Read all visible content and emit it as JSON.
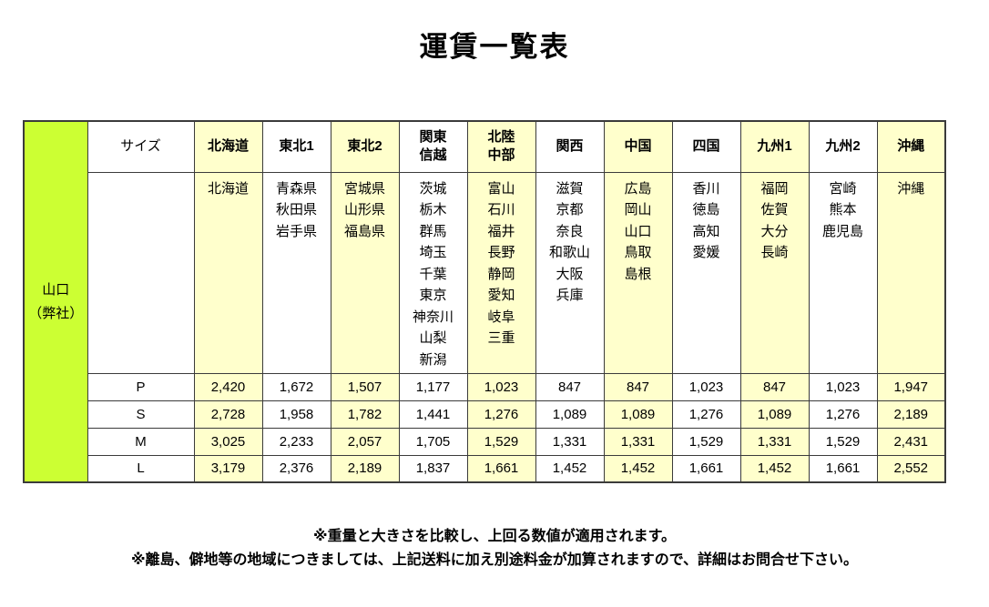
{
  "title": "運賃一覧表",
  "origin": {
    "line1": "山口",
    "line2": "（弊社）"
  },
  "table": {
    "size_header": "サイズ",
    "columns": [
      {
        "id": "hokkaido",
        "label_lines": [
          "北海道"
        ],
        "highlight": true,
        "prefectures": [
          "北海道"
        ]
      },
      {
        "id": "tohoku1",
        "label_lines": [
          "東北1"
        ],
        "highlight": false,
        "prefectures": [
          "青森県",
          "秋田県",
          "岩手県"
        ]
      },
      {
        "id": "tohoku2",
        "label_lines": [
          "東北2"
        ],
        "highlight": true,
        "prefectures": [
          "宮城県",
          "山形県",
          "福島県"
        ]
      },
      {
        "id": "kanto-shinetsu",
        "label_lines": [
          "関東",
          "信越"
        ],
        "highlight": false,
        "prefectures": [
          "茨城",
          "栃木",
          "群馬",
          "埼玉",
          "千葉",
          "東京",
          "神奈川",
          "山梨",
          "新潟"
        ]
      },
      {
        "id": "hokuriku-chubu",
        "label_lines": [
          "北陸",
          "中部"
        ],
        "highlight": true,
        "prefectures": [
          "富山",
          "石川",
          "福井",
          "長野",
          "静岡",
          "愛知",
          "岐阜",
          "三重"
        ]
      },
      {
        "id": "kansai",
        "label_lines": [
          "関西"
        ],
        "highlight": false,
        "prefectures": [
          "滋賀",
          "京都",
          "奈良",
          "和歌山",
          "大阪",
          "兵庫"
        ]
      },
      {
        "id": "chugoku",
        "label_lines": [
          "中国"
        ],
        "highlight": true,
        "prefectures": [
          "広島",
          "岡山",
          "山口",
          "鳥取",
          "島根"
        ]
      },
      {
        "id": "shikoku",
        "label_lines": [
          "四国"
        ],
        "highlight": false,
        "prefectures": [
          "香川",
          "徳島",
          "高知",
          "愛媛"
        ]
      },
      {
        "id": "kyushu1",
        "label_lines": [
          "九州1"
        ],
        "highlight": true,
        "prefectures": [
          "福岡",
          "佐賀",
          "大分",
          "長崎"
        ]
      },
      {
        "id": "kyushu2",
        "label_lines": [
          "九州2"
        ],
        "highlight": false,
        "prefectures": [
          "宮崎",
          "熊本",
          "鹿児島"
        ]
      },
      {
        "id": "okinawa",
        "label_lines": [
          "沖縄"
        ],
        "highlight": true,
        "prefectures": [
          "沖縄"
        ]
      }
    ],
    "rows": [
      {
        "size": "P",
        "values": [
          "2,420",
          "1,672",
          "1,507",
          "1,177",
          "1,023",
          "847",
          "847",
          "1,023",
          "847",
          "1,023",
          "1,947"
        ]
      },
      {
        "size": "S",
        "values": [
          "2,728",
          "1,958",
          "1,782",
          "1,441",
          "1,276",
          "1,089",
          "1,089",
          "1,276",
          "1,089",
          "1,276",
          "2,189"
        ]
      },
      {
        "size": "M",
        "values": [
          "3,025",
          "2,233",
          "2,057",
          "1,705",
          "1,529",
          "1,331",
          "1,331",
          "1,529",
          "1,331",
          "1,529",
          "2,431"
        ]
      },
      {
        "size": "L",
        "values": [
          "3,179",
          "2,376",
          "2,189",
          "1,837",
          "1,661",
          "1,452",
          "1,452",
          "1,661",
          "1,452",
          "1,661",
          "2,552"
        ]
      }
    ]
  },
  "notes": [
    "※重量と大きさを比較し、上回る数値が適用されます。",
    "※離島、僻地等の地域につきましては、上記送料に加え別途料金が加算されますので、詳細はお問合せ下さい。"
  ],
  "colors": {
    "origin_bg": "#ccff33",
    "highlight_bg": "#ffffcc",
    "border": "#3b3b3b",
    "text": "#000000",
    "page_bg": "#ffffff"
  }
}
